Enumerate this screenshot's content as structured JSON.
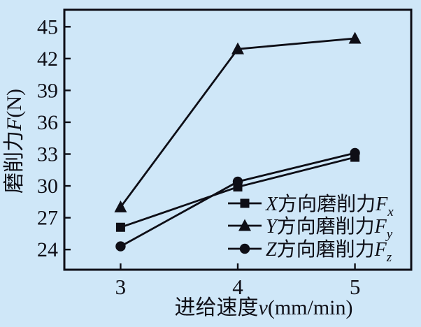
{
  "figure": {
    "bg_color": "#cfe7f8",
    "ink_color": "#0e0e16"
  },
  "chart_data": {
    "type": "line",
    "title": "",
    "x": [
      3,
      4,
      5
    ],
    "series": [
      {
        "name": "Fx",
        "marker": "square",
        "values": [
          26.1,
          29.9,
          32.7
        ],
        "legend": {
          "lead": "X",
          "body": "方向磨削力",
          "sym": "F",
          "sub": "x"
        }
      },
      {
        "name": "Fy",
        "marker": "triangle",
        "values": [
          28.0,
          42.9,
          43.9
        ],
        "legend": {
          "lead": "Y",
          "body": "方向磨削力",
          "sym": "F",
          "sub": "y"
        }
      },
      {
        "name": "Fz",
        "marker": "circle",
        "values": [
          24.3,
          30.4,
          33.1
        ],
        "legend": {
          "lead": "Z",
          "body": "方向磨削力",
          "sym": "F",
          "sub": "z"
        }
      }
    ],
    "xlabel": {
      "body": "进给速度",
      "sym": "v",
      "unit": "(mm/min)"
    },
    "ylabel": {
      "body": "磨削力",
      "sym": "F",
      "unit": "(N)"
    },
    "xticks": [
      3,
      4,
      5
    ],
    "yticks": [
      24,
      27,
      30,
      33,
      36,
      39,
      42,
      45
    ],
    "xlim": [
      2.52,
      5.48
    ],
    "ylim": [
      22.1,
      46.6
    ],
    "grid": false,
    "legend_position": "lower-right"
  }
}
